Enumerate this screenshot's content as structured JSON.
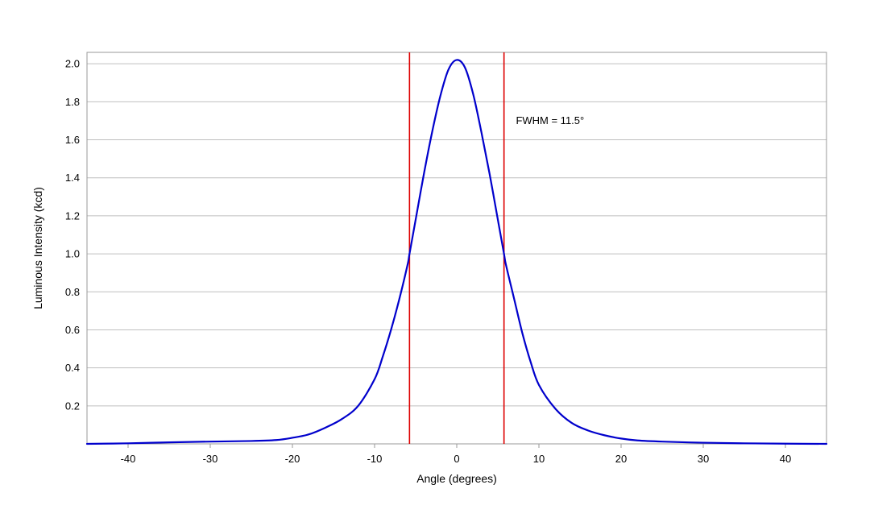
{
  "chart_data": {
    "type": "line",
    "title": "",
    "xlabel": "Angle (degrees)",
    "ylabel": "Luminous Intensity (kcd)",
    "xlim": [
      -45,
      45
    ],
    "ylim": [
      0,
      2.06
    ],
    "x_ticks": [
      -40,
      -30,
      -20,
      -10,
      0,
      10,
      20,
      30,
      40
    ],
    "x_tick_labels": [
      "-40",
      "-30",
      "-20",
      "-10",
      "0",
      "10",
      "20",
      "30",
      "40"
    ],
    "y_ticks": [
      0.2,
      0.4,
      0.6,
      0.8,
      1.0,
      1.2,
      1.4,
      1.6,
      1.8,
      2.0
    ],
    "y_tick_labels": [
      "0.2",
      "0.4",
      "0.6",
      "0.8",
      "1.0",
      "1.2",
      "1.4",
      "1.6",
      "1.8",
      "2.0"
    ],
    "grid": "horizontal",
    "legend": "none",
    "series": [
      {
        "color": "#0000cc",
        "x": [
          -45,
          -40,
          -35,
          -30,
          -25,
          -22,
          -20,
          -18,
          -16,
          -14,
          -12,
          -10,
          -9,
          -8,
          -7,
          -6,
          -5.75,
          -5,
          -4,
          -3,
          -2,
          -1,
          0,
          1,
          2,
          3,
          4,
          5,
          5.75,
          6,
          7,
          8,
          9,
          10,
          12,
          14,
          16,
          18,
          20,
          22,
          25,
          30,
          35,
          40,
          45
        ],
        "y": [
          0.0,
          0.003,
          0.008,
          0.012,
          0.015,
          0.02,
          0.032,
          0.05,
          0.085,
          0.13,
          0.2,
          0.34,
          0.46,
          0.6,
          0.76,
          0.94,
          1.0,
          1.18,
          1.42,
          1.64,
          1.83,
          1.97,
          2.02,
          1.98,
          1.84,
          1.64,
          1.42,
          1.18,
          1.0,
          0.94,
          0.76,
          0.58,
          0.43,
          0.31,
          0.185,
          0.11,
          0.07,
          0.045,
          0.028,
          0.018,
          0.012,
          0.006,
          0.003,
          0.001,
          0.0
        ]
      }
    ],
    "markers": [
      {
        "x": -5.75,
        "color": "#dd0000"
      },
      {
        "x": 5.75,
        "color": "#dd0000"
      }
    ],
    "annotation": {
      "text": "FWHM = 11.5°",
      "x": 7.2,
      "y": 1.7
    },
    "colors": {
      "curve": "#0000cc",
      "marker": "#dd0000",
      "grid": "#bfbfbf",
      "frame": "#9a9a9a"
    }
  }
}
